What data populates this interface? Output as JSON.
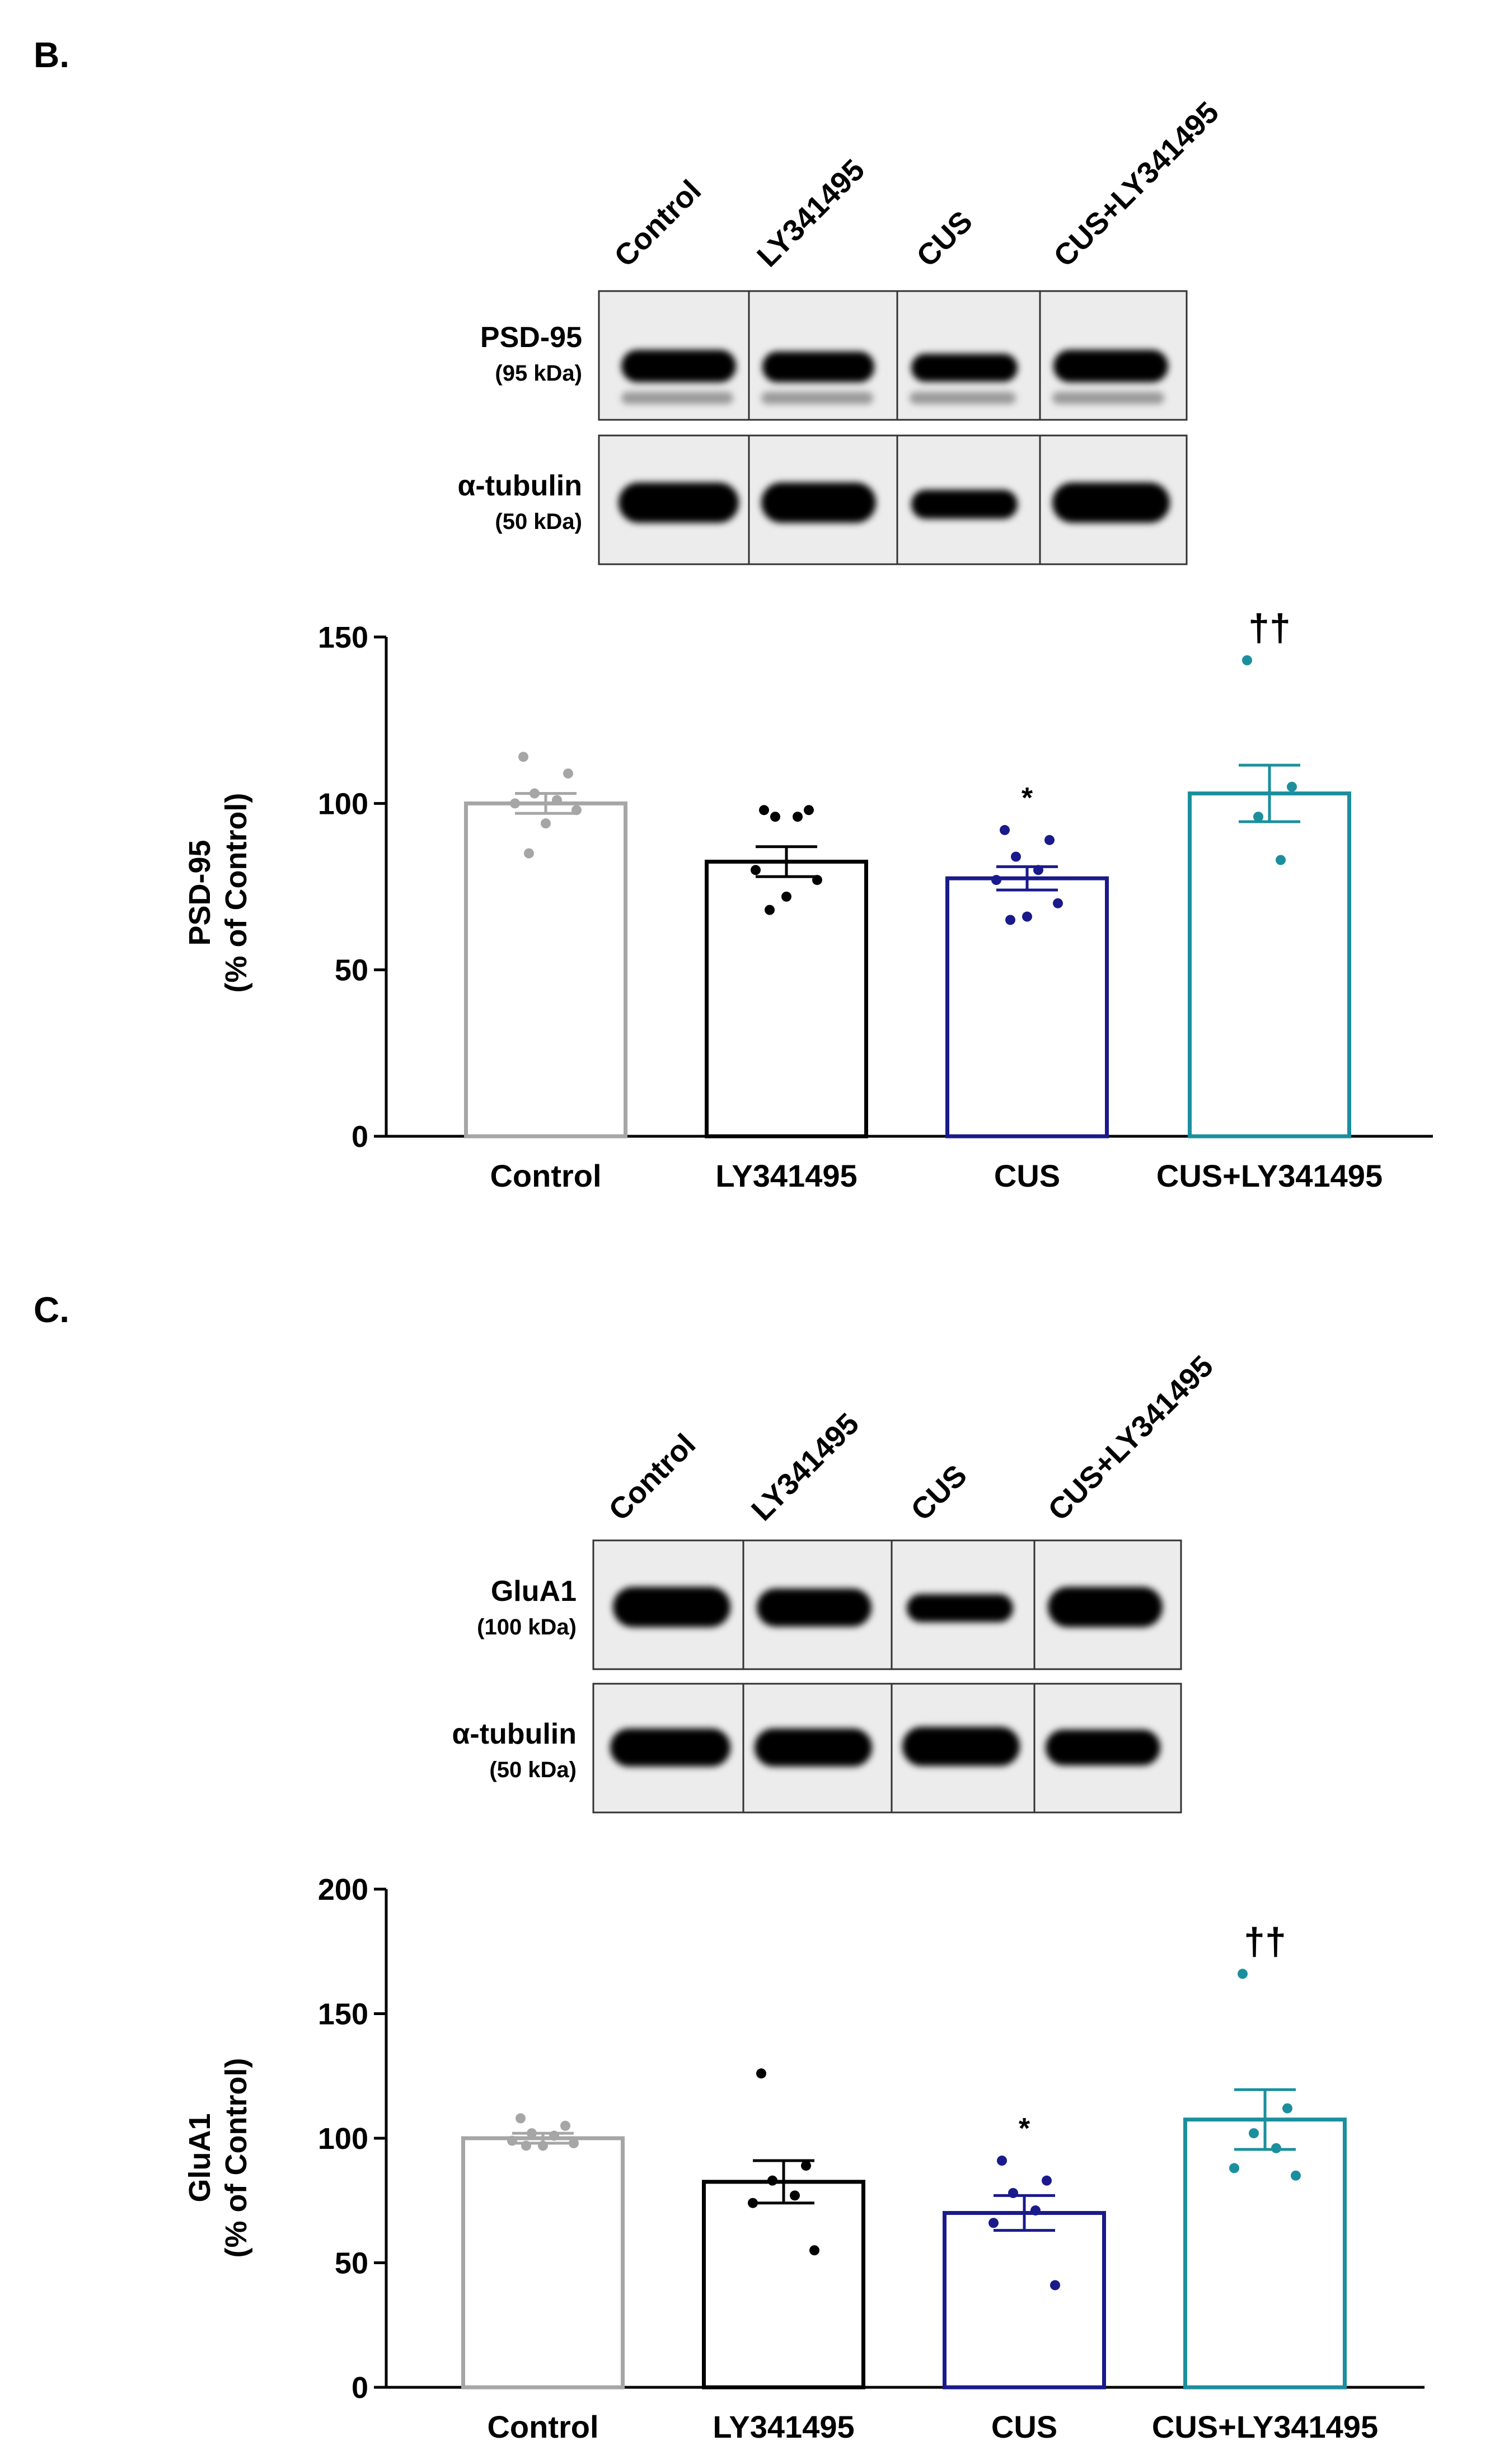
{
  "panels": [
    {
      "letter": "B.",
      "lanes": [
        "Control",
        "LY341495",
        "CUS",
        "CUS+LY341495"
      ],
      "blots": [
        {
          "name": "PSD-95",
          "kda": "(95 kDa)"
        },
        {
          "name": "α-tubulin",
          "kda": "(50 kDa)"
        }
      ],
      "chart_data": {
        "type": "bar",
        "categories": [
          "Control",
          "LY341495",
          "CUS",
          "CUS+LY341495"
        ],
        "values": [
          100,
          82.5,
          77.5,
          103
        ],
        "sem": [
          3,
          4.5,
          3.5,
          8.5
        ],
        "points": [
          [
            114,
            109,
            103,
            101,
            100,
            98,
            94,
            85
          ],
          [
            98,
            98,
            96,
            96,
            80,
            77,
            72,
            68
          ],
          [
            92,
            89,
            84,
            80,
            77,
            70,
            66,
            65
          ],
          [
            143,
            105,
            96,
            83
          ]
        ],
        "annotations": [
          "",
          "",
          "*",
          "††"
        ],
        "ylabel": "PSD-95",
        "ylabel2": "(% of Control)",
        "ylim": [
          0,
          150
        ],
        "yticks": [
          0,
          50,
          100,
          150
        ],
        "colors": [
          "#a6a6a6",
          "#000000",
          "#1a1a8c",
          "#1b8f9e"
        ]
      }
    },
    {
      "letter": "C.",
      "lanes": [
        "Control",
        "LY341495",
        "CUS",
        "CUS+LY341495"
      ],
      "blots": [
        {
          "name": "GluA1",
          "kda": "(100 kDa)"
        },
        {
          "name": "α-tubulin",
          "kda": "(50 kDa)"
        }
      ],
      "chart_data": {
        "type": "bar",
        "categories": [
          "Control",
          "LY341495",
          "CUS",
          "CUS+LY341495"
        ],
        "values": [
          100,
          82.5,
          70,
          107.5
        ],
        "sem": [
          2,
          8.5,
          7,
          12
        ],
        "points": [
          [
            108,
            105,
            102,
            101,
            99,
            98,
            97,
            97
          ],
          [
            126,
            89,
            83,
            77,
            74,
            55
          ],
          [
            91,
            83,
            78,
            71,
            66,
            41
          ],
          [
            166,
            112,
            102,
            96,
            88,
            85
          ]
        ],
        "annotations": [
          "",
          "",
          "*",
          "††"
        ],
        "ylabel": "GluA1",
        "ylabel2": "(% of Control)",
        "ylim": [
          0,
          200
        ],
        "yticks": [
          0,
          50,
          100,
          150,
          200
        ],
        "colors": [
          "#a6a6a6",
          "#000000",
          "#1a1a8c",
          "#1b8f9e"
        ]
      }
    }
  ]
}
